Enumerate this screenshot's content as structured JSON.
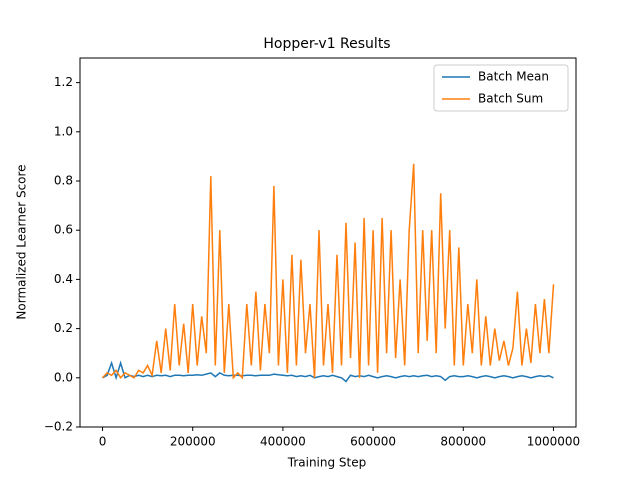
{
  "chart_data": {
    "type": "line",
    "title": "Hopper-v1 Results",
    "x_label": "Training Step",
    "y_label": "Normalized Learner Score",
    "x": [
      0,
      10000,
      20000,
      30000,
      40000,
      50000,
      60000,
      70000,
      80000,
      90000,
      100000,
      110000,
      120000,
      130000,
      140000,
      150000,
      160000,
      170000,
      180000,
      190000,
      200000,
      210000,
      220000,
      230000,
      240000,
      250000,
      260000,
      270000,
      280000,
      290000,
      300000,
      310000,
      320000,
      330000,
      340000,
      350000,
      360000,
      370000,
      380000,
      390000,
      400000,
      410000,
      420000,
      430000,
      440000,
      450000,
      460000,
      470000,
      480000,
      490000,
      500000,
      510000,
      520000,
      530000,
      540000,
      550000,
      560000,
      570000,
      580000,
      590000,
      600000,
      610000,
      620000,
      630000,
      640000,
      650000,
      660000,
      670000,
      680000,
      690000,
      700000,
      710000,
      720000,
      730000,
      740000,
      750000,
      760000,
      770000,
      780000,
      790000,
      800000,
      810000,
      820000,
      830000,
      840000,
      850000,
      860000,
      870000,
      880000,
      890000,
      900000,
      910000,
      920000,
      930000,
      940000,
      950000,
      960000,
      970000,
      980000,
      990000,
      1000000
    ],
    "series": [
      {
        "name": "Batch Mean",
        "color": "#1f77b4",
        "values": [
          0.0,
          0.01,
          0.06,
          0.0,
          0.06,
          0.0,
          0.01,
          0.005,
          0.01,
          0.005,
          0.01,
          0.005,
          0.01,
          0.008,
          0.01,
          0.005,
          0.01,
          0.01,
          0.008,
          0.01,
          0.01,
          0.012,
          0.01,
          0.015,
          0.02,
          0.005,
          0.02,
          0.01,
          0.008,
          0.01,
          0.01,
          0.008,
          0.01,
          0.01,
          0.008,
          0.01,
          0.01,
          0.01,
          0.015,
          0.012,
          0.01,
          0.008,
          0.01,
          0.005,
          0.008,
          0.005,
          0.01,
          0.0,
          0.005,
          0.008,
          0.005,
          0.01,
          0.005,
          0.0,
          -0.015,
          0.01,
          0.005,
          0.008,
          0.005,
          0.01,
          0.005,
          0.0,
          0.005,
          0.008,
          0.005,
          0.0,
          0.005,
          0.008,
          0.005,
          0.008,
          0.005,
          0.008,
          0.01,
          0.005,
          0.008,
          0.005,
          -0.01,
          0.005,
          0.008,
          0.005,
          0.005,
          0.008,
          0.005,
          0.0,
          0.005,
          0.008,
          0.005,
          0.0,
          0.005,
          0.008,
          0.005,
          0.0,
          0.005,
          0.008,
          0.005,
          0.0,
          0.005,
          0.008,
          0.005,
          0.008,
          0.0
        ]
      },
      {
        "name": "Batch Sum",
        "color": "#ff7f0e",
        "values": [
          0.0,
          0.02,
          0.01,
          0.03,
          0.0,
          0.02,
          0.01,
          0.0,
          0.03,
          0.02,
          0.05,
          0.01,
          0.15,
          0.02,
          0.2,
          0.03,
          0.3,
          0.05,
          0.22,
          0.02,
          0.3,
          0.05,
          0.25,
          0.1,
          0.82,
          0.05,
          0.6,
          0.02,
          0.3,
          0.0,
          0.02,
          0.0,
          0.3,
          0.05,
          0.35,
          0.03,
          0.3,
          0.1,
          0.78,
          0.05,
          0.4,
          0.02,
          0.5,
          0.05,
          0.48,
          0.1,
          0.3,
          0.0,
          0.6,
          0.05,
          0.3,
          0.02,
          0.5,
          0.05,
          0.63,
          0.08,
          0.55,
          0.0,
          0.65,
          0.05,
          0.6,
          0.02,
          0.65,
          0.1,
          0.6,
          0.08,
          0.4,
          0.05,
          0.6,
          0.87,
          0.1,
          0.6,
          0.15,
          0.6,
          0.1,
          0.75,
          0.2,
          0.6,
          0.05,
          0.53,
          0.05,
          0.3,
          0.1,
          0.4,
          0.05,
          0.25,
          0.05,
          0.2,
          0.07,
          0.15,
          0.05,
          0.12,
          0.35,
          0.05,
          0.2,
          0.06,
          0.3,
          0.1,
          0.32,
          0.1,
          0.38
        ]
      }
    ],
    "xlim": [
      -50000,
      1050000
    ],
    "ylim": [
      -0.2,
      1.3
    ],
    "xticks": [
      0,
      200000,
      400000,
      600000,
      800000,
      1000000
    ],
    "yticks": [
      {
        "value": -0.2,
        "label": "−0.2"
      },
      {
        "value": 0,
        "label": "0.0"
      },
      0.2,
      0.4,
      0.6,
      0.8,
      {
        "value": 1,
        "label": "1.0"
      },
      1.2
    ],
    "legend": "upper right"
  }
}
